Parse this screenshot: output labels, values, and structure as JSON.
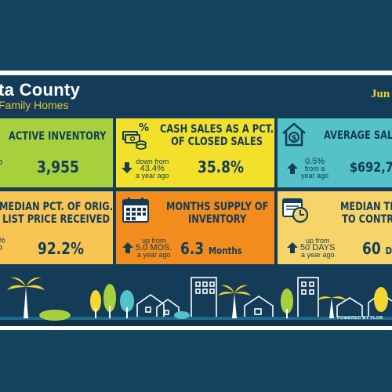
{
  "header": {
    "title": "ta County",
    "subtitle": "Family Homes",
    "date": "Jun"
  },
  "tiles": {
    "active_inventory": {
      "label": "ACTIVE INVENTORY",
      "value": "3,955",
      "change_a": "o",
      "change_b": ""
    },
    "cash_sales": {
      "label_1": "CASH SALES AS A PCT.",
      "label_2": "OF CLOSED SALES",
      "value": "35.8%",
      "change_1": "down from",
      "change_2": "43.4%",
      "change_3": "a year ago",
      "direction": "down"
    },
    "average_sale": {
      "label": "AVERAGE SALE",
      "value": "$692,7",
      "change_1": "0.5%",
      "change_2": "from a",
      "change_3": "year ago",
      "direction": "up"
    },
    "median_pct": {
      "label_1": "MEDIAN PCT. OF ORIG.",
      "label_2": "LIST PRICE RECEIVED",
      "value": "92.2%",
      "change_a": "%",
      "change_b": "o"
    },
    "months_supply": {
      "label_1": "MONTHS SUPPLY OF",
      "label_2": "INVENTORY",
      "value": "6.3",
      "value_unit": "Months",
      "change_1": "up from",
      "change_2": "5.0 MOS.",
      "change_3": "a year ago",
      "direction": "up"
    },
    "median_time": {
      "label_1": "MEDIAN TIM",
      "label_2": "TO CONTRA",
      "value": "60",
      "value_unit": "Da",
      "change_1": "up from",
      "change_2": "50 DAYS",
      "change_3": "a year ago",
      "direction": "up"
    }
  },
  "footer": {
    "powered": "POWERED BY FLOR"
  },
  "colors": {
    "navy": "#143c58",
    "green": "#a6d03c",
    "yellow": "#f2e02a",
    "teal": "#54c2c8",
    "orange": "#f28c1c",
    "light_orange": "#f8c452",
    "gold": "#f3d630"
  },
  "icons": [
    "money-bills-percent-icon",
    "house-dollar-icon",
    "calendar-icon",
    "calendar-clock-icon",
    "down-arrow-icon",
    "up-arrow-icon"
  ]
}
